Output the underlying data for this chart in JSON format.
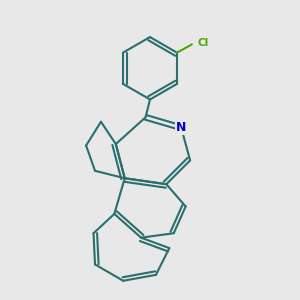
{
  "bg": "#e8e8e8",
  "bc": "#2a6e6e",
  "nc": "#0000cc",
  "clc": "#44aa00",
  "lw": 1.5,
  "doff": 0.08
}
